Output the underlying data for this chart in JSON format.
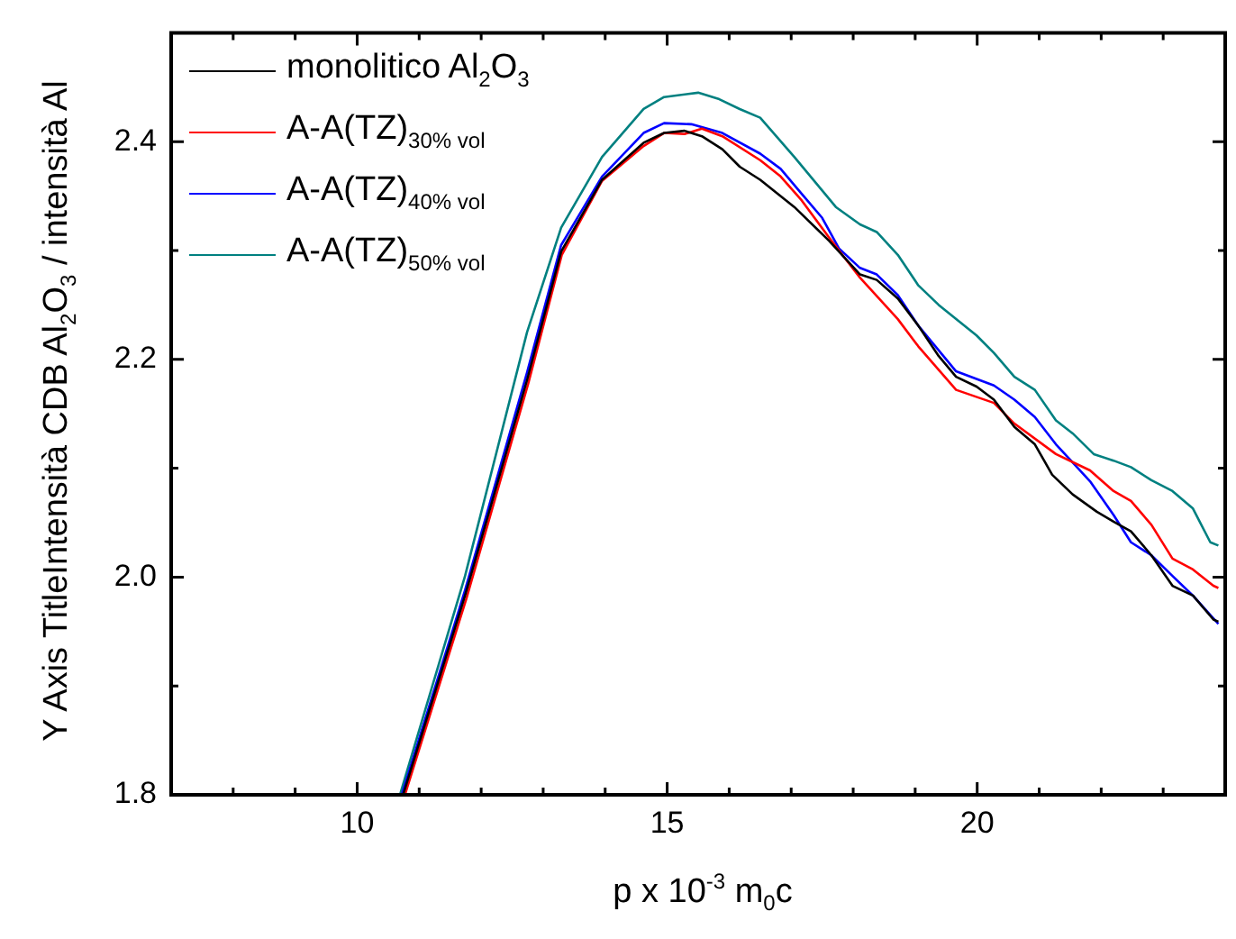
{
  "chart_data": {
    "type": "line",
    "xlabel": "p x 10$^{-3}$ m$_{0}$c",
    "ylabel": "Y Axis TitleIntensità CDB Al$_{2}$O$_{3}$ / intensità Al",
    "xlim": [
      7,
      24
    ],
    "ylim": [
      1.8,
      2.5
    ],
    "xticks": [
      {
        "value": 7,
        "label": null
      },
      {
        "value": 8,
        "label": null
      },
      {
        "value": 9,
        "label": null
      },
      10,
      {
        "value": 11,
        "label": null
      },
      {
        "value": 12,
        "label": null
      },
      {
        "value": 13,
        "label": null
      },
      {
        "value": 14,
        "label": null
      },
      15,
      {
        "value": 16,
        "label": null
      },
      {
        "value": 17,
        "label": null
      },
      {
        "value": 18,
        "label": null
      },
      {
        "value": 19,
        "label": null
      },
      20,
      {
        "value": 21,
        "label": null
      },
      {
        "value": 22,
        "label": null
      },
      {
        "value": 23,
        "label": null
      },
      {
        "value": 24,
        "label": null
      }
    ],
    "yticks": [
      {
        "value": 1.8,
        "label": "1.8"
      },
      {
        "value": 1.9,
        "label": null
      },
      {
        "value": 2.0,
        "label": "2.0"
      },
      {
        "value": 2.1,
        "label": null
      },
      {
        "value": 2.2,
        "label": "2.2"
      },
      {
        "value": 2.3,
        "label": null
      },
      {
        "value": 2.4,
        "label": "2.4"
      },
      {
        "value": 2.5,
        "label": null
      }
    ],
    "grid": false,
    "legend": "top left",
    "marker": "none",
    "line_style": "solid",
    "series": [
      {
        "name": "monolitico Al$_{2}$O$_{3}$",
        "color": "#000000",
        "x": [
          10.74,
          11.74,
          12.74,
          13.29,
          13.95,
          14.62,
          14.95,
          15.28,
          15.56,
          15.89,
          16.17,
          16.5,
          17.05,
          17.61,
          18.11,
          18.38,
          18.72,
          19.05,
          19.38,
          19.66,
          19.99,
          20.27,
          20.6,
          20.93,
          21.21,
          21.54,
          21.93,
          22.2,
          22.48,
          22.81,
          23.15,
          23.48,
          23.81,
          23.89
        ],
        "values": [
          1.8,
          1.983,
          2.181,
          2.299,
          2.365,
          2.399,
          2.408,
          2.41,
          2.405,
          2.393,
          2.377,
          2.365,
          2.34,
          2.309,
          2.278,
          2.273,
          2.256,
          2.231,
          2.203,
          2.184,
          2.175,
          2.163,
          2.138,
          2.122,
          2.094,
          2.076,
          2.06,
          2.051,
          2.042,
          2.02,
          1.992,
          1.983,
          1.961,
          1.959
        ]
      },
      {
        "name": "A-A(TZ)$_{30% vol}$",
        "color": "#ff0000",
        "x": [
          10.77,
          11.76,
          12.76,
          13.3,
          13.95,
          14.62,
          14.95,
          15.28,
          15.56,
          15.89,
          16.5,
          16.83,
          17.17,
          17.61,
          18.11,
          18.72,
          19.05,
          19.66,
          20.27,
          20.6,
          21.27,
          21.82,
          22.2,
          22.48,
          22.81,
          23.15,
          23.48,
          23.81,
          23.89
        ],
        "values": [
          1.8,
          1.98,
          2.178,
          2.296,
          2.364,
          2.396,
          2.408,
          2.407,
          2.412,
          2.405,
          2.383,
          2.368,
          2.346,
          2.312,
          2.275,
          2.237,
          2.212,
          2.172,
          2.16,
          2.141,
          2.113,
          2.098,
          2.079,
          2.07,
          2.048,
          2.017,
          2.007,
          1.992,
          1.99
        ]
      },
      {
        "name": "A-A(TZ)$_{40% vol}$",
        "color": "#0000ff",
        "x": [
          10.72,
          11.74,
          12.74,
          13.29,
          13.95,
          14.62,
          14.95,
          15.39,
          15.89,
          16.5,
          16.83,
          17.17,
          17.5,
          17.77,
          18.11,
          18.38,
          18.72,
          19.05,
          19.66,
          20.27,
          20.6,
          20.93,
          21.27,
          21.82,
          22.2,
          22.48,
          22.81,
          23.15,
          23.48,
          23.89
        ],
        "values": [
          1.8,
          1.988,
          2.188,
          2.305,
          2.368,
          2.408,
          2.417,
          2.416,
          2.408,
          2.389,
          2.375,
          2.352,
          2.33,
          2.302,
          2.284,
          2.278,
          2.259,
          2.231,
          2.189,
          2.176,
          2.163,
          2.147,
          2.122,
          2.088,
          2.057,
          2.032,
          2.02,
          2.001,
          1.983,
          1.957
        ]
      },
      {
        "name": "A-A(TZ)$_{50% vol}$",
        "color": "#008080",
        "x": [
          10.69,
          11.74,
          12.74,
          13.29,
          13.95,
          14.62,
          14.95,
          15.5,
          15.84,
          16.17,
          16.5,
          17.05,
          17.72,
          18.11,
          18.38,
          18.72,
          19.05,
          19.38,
          19.99,
          20.27,
          20.6,
          20.93,
          21.27,
          21.54,
          21.88,
          22.2,
          22.48,
          22.81,
          23.15,
          23.48,
          23.76,
          23.89
        ],
        "values": [
          1.8,
          2.001,
          2.225,
          2.321,
          2.386,
          2.43,
          2.441,
          2.445,
          2.439,
          2.43,
          2.422,
          2.386,
          2.34,
          2.324,
          2.317,
          2.296,
          2.268,
          2.25,
          2.222,
          2.206,
          2.184,
          2.172,
          2.144,
          2.132,
          2.113,
          2.107,
          2.101,
          2.089,
          2.079,
          2.063,
          2.032,
          2.029
        ]
      }
    ]
  }
}
